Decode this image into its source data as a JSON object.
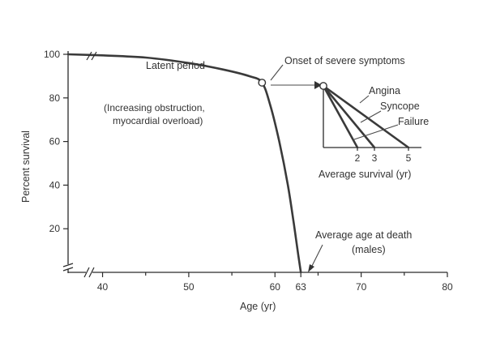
{
  "chart_data": [
    {
      "type": "line",
      "title": "",
      "xlabel": "Age (yr)",
      "ylabel": "Percent survival",
      "xlim": [
        36,
        80
      ],
      "ylim": [
        0,
        100
      ],
      "x_ticks": [
        40,
        50,
        60,
        63,
        70,
        80
      ],
      "y_ticks": [
        20,
        40,
        60,
        80,
        100
      ],
      "axis_breaks": [
        "x",
        "y"
      ],
      "series": [
        {
          "name": "Survival",
          "x": [
            36,
            40,
            45,
            50,
            54,
            57,
            58.5,
            59.5,
            60.5,
            61.5,
            62.2,
            62.7,
            63
          ],
          "y": [
            100,
            99.5,
            98.5,
            96,
            93,
            90,
            87,
            76,
            60,
            40,
            22,
            8,
            0
          ]
        }
      ],
      "marker_point": {
        "x": 58.5,
        "y": 87
      },
      "annotations": [
        {
          "text": "Latent period",
          "anchor_x": 49,
          "anchor_y": 97.5
        },
        {
          "text": "Onset of severe symptoms",
          "anchor_x": 58.5,
          "anchor_y": 87
        },
        {
          "text": "(Increasing obstruction,",
          "anchor_x": 48,
          "anchor_y": 77
        },
        {
          "text": "myocardial overload)",
          "anchor_x": 48,
          "anchor_y": 70
        },
        {
          "text": "Average age at death",
          "anchor_x": 63,
          "anchor_y": 0
        },
        {
          "text": "(males)",
          "anchor_x": 63,
          "anchor_y": 0
        }
      ]
    },
    {
      "type": "line",
      "title": "",
      "xlabel": "Average survival (yr)",
      "ylabel": "",
      "x_ticks": [
        2,
        3,
        5
      ],
      "xlim": [
        0,
        5
      ],
      "series": [
        {
          "name": "Angina",
          "x": [
            0,
            5
          ],
          "y": [
            100,
            0
          ]
        },
        {
          "name": "Syncope",
          "x": [
            0,
            3
          ],
          "y": [
            100,
            0
          ]
        },
        {
          "name": "Failure",
          "x": [
            0,
            2
          ],
          "y": [
            100,
            0
          ]
        }
      ]
    }
  ],
  "labels": {
    "latent_period": "Latent period",
    "onset": "Onset of severe symptoms",
    "obstruction_line1": "(Increasing obstruction,",
    "obstruction_line2": "myocardial overload)",
    "death_line1": "Average age at death",
    "death_line2": "(males)",
    "angina": "Angina",
    "syncope": "Syncope",
    "failure": "Failure",
    "inset_xlabel": "Average survival (yr)",
    "main_xlabel": "Age (yr)",
    "main_ylabel": "Percent survival"
  }
}
